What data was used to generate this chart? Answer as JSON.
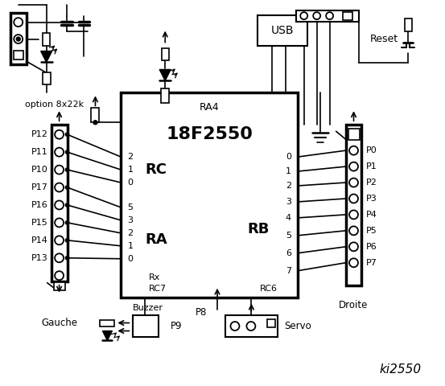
{
  "bg": "#ffffff",
  "chip_label": "18F2550",
  "chip_sub": "RA4",
  "rc_label": "RC",
  "ra_label": "RA",
  "rb_label": "RB",
  "left_pins": [
    "P12",
    "P11",
    "P10",
    "P17",
    "P16",
    "P15",
    "P14",
    "P13"
  ],
  "right_pins": [
    "P0",
    "P1",
    "P2",
    "P3",
    "P4",
    "P5",
    "P6",
    "P7"
  ],
  "rc_nums": [
    "2",
    "1",
    "0"
  ],
  "ra_nums": [
    "5",
    "3",
    "2",
    "1",
    "0"
  ],
  "rb_nums": [
    "0",
    "1",
    "2",
    "3",
    "4",
    "5",
    "6",
    "7"
  ],
  "rx_label": "Rx",
  "rc7_label": "RC7",
  "rc6_label": "RC6",
  "option_label": "option 8x22k",
  "reset_label": "Reset",
  "usb_label": "USB",
  "gauche_label": "Gauche",
  "droite_label": "Droite",
  "buzzer_label": "Buzzer",
  "p9_label": "P9",
  "p8_label": "P8",
  "servo_label": "Servo",
  "ki_label": "ki2550"
}
